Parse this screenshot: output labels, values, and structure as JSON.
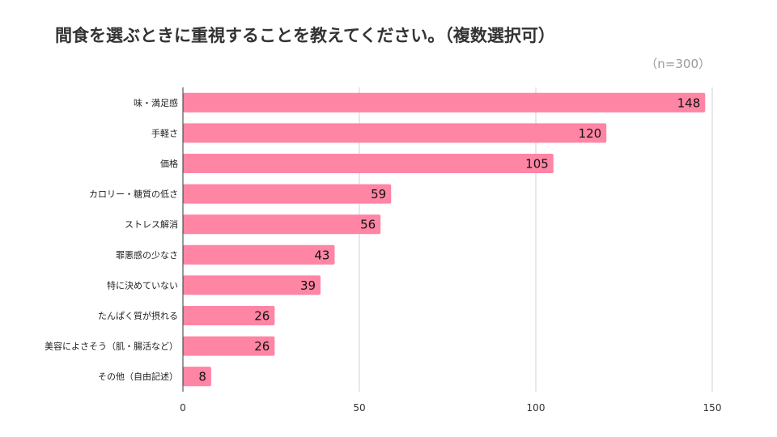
{
  "chart_data": {
    "type": "bar",
    "orientation": "horizontal",
    "title": "間食を選ぶときに重視することを教えてください。（複数選択可）",
    "note": "（n=300）",
    "categories": [
      "味・満足感",
      "手軽さ",
      "価格",
      "カロリー・糖質の低さ",
      "ストレス解消",
      "罪悪感の少なさ",
      "特に決めていない",
      "たんぱく質が摂れる",
      "美容によさそう（肌・腸活など）",
      "その他（自由記述）"
    ],
    "values": [
      148,
      120,
      105,
      59,
      56,
      43,
      39,
      26,
      26,
      8
    ],
    "xlim": [
      0,
      150
    ],
    "xticks": [
      0,
      50,
      100,
      150
    ],
    "grid": true,
    "bar_color": "#ff85a5"
  }
}
